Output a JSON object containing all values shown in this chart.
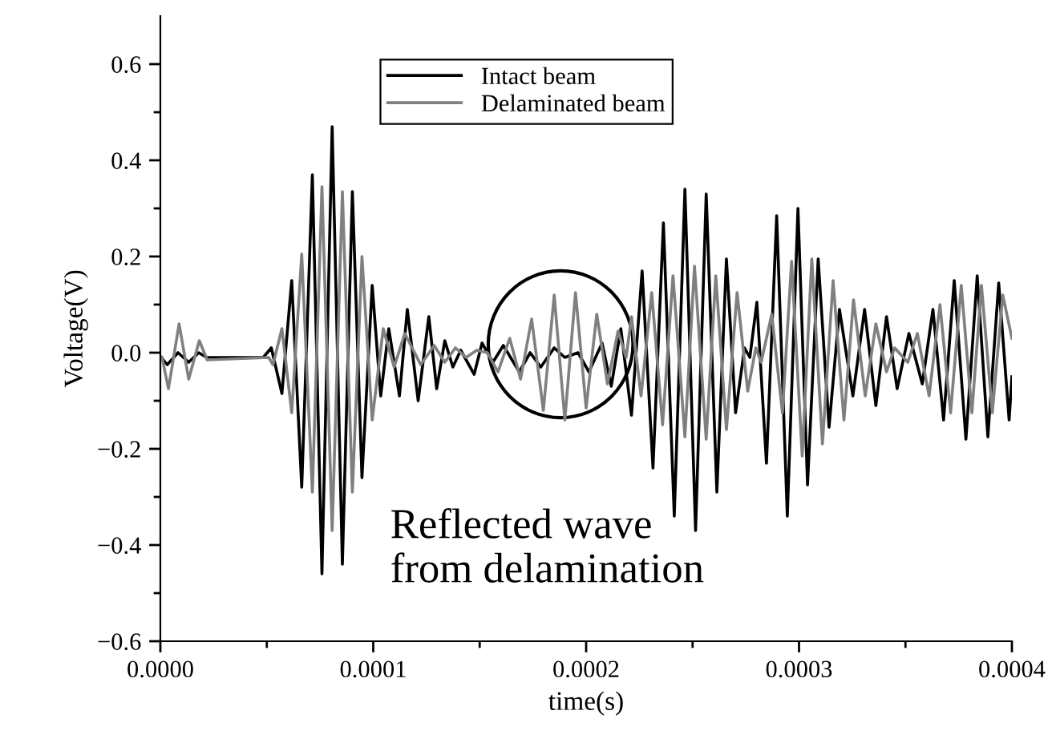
{
  "chart_data": {
    "type": "line",
    "xlabel": "time(s)",
    "ylabel": "Voltage(V)",
    "xlim": [
      0,
      0.0004
    ],
    "ylim": [
      -0.6,
      0.7
    ],
    "xticks": [
      {
        "value": 0,
        "label": "0.0000"
      },
      {
        "value": 5e-05,
        "label": null
      },
      {
        "value": 0.0001,
        "label": "0.0001"
      },
      {
        "value": 0.00015,
        "label": null
      },
      {
        "value": 0.0002,
        "label": "0.0002"
      },
      {
        "value": 0.00025,
        "label": null
      },
      {
        "value": 0.0003,
        "label": "0.0003"
      },
      {
        "value": 0.00035,
        "label": null
      },
      {
        "value": 0.0004,
        "label": "0.0004"
      }
    ],
    "yticks": [
      {
        "value": -0.6,
        "label": "−0.6"
      },
      {
        "value": -0.5,
        "label": null
      },
      {
        "value": -0.4,
        "label": "−0.4"
      },
      {
        "value": -0.3,
        "label": null
      },
      {
        "value": -0.2,
        "label": "−0.2"
      },
      {
        "value": -0.1,
        "label": null
      },
      {
        "value": 0,
        "label": "0.0"
      },
      {
        "value": 0.1,
        "label": null
      },
      {
        "value": 0.2,
        "label": "0.2"
      },
      {
        "value": 0.3,
        "label": null
      },
      {
        "value": 0.4,
        "label": "0.4"
      },
      {
        "value": 0.5,
        "label": null
      },
      {
        "value": 0.6,
        "label": "0.6"
      }
    ],
    "grid": false,
    "legend": "top",
    "marker": "none",
    "line_style": "solid",
    "annotations": [
      "Reflected wave\nfrom delamination"
    ],
    "series": [
      {
        "name": "Intact beam",
        "color": "#000000",
        "x": [
          5e-07,
          3.2e-06,
          8.3e-06,
          1.33e-05,
          1.8e-05,
          2.18e-05,
          4.83e-05,
          5.21e-05,
          5.71e-05,
          6.17e-05,
          6.64e-05,
          7.14e-05,
          7.59e-05,
          8.07e-05,
          8.55e-05,
          9.02e-05,
          9.47e-05,
          9.95e-05,
          0.0001035,
          0.0001073,
          0.0001123,
          0.000116,
          0.0001211,
          0.0001261,
          0.0001298,
          0.0001336,
          0.0001374,
          0.0001411,
          0.0001474,
          0.0001511,
          0.0001562,
          0.0001611,
          0.0001686,
          0.0001737,
          0.0001787,
          0.000185,
          0.00019,
          0.0001962,
          0.0002013,
          0.0002075,
          0.0002118,
          0.0002163,
          0.0002213,
          0.0002263,
          0.0002314,
          0.0002363,
          0.0002414,
          0.0002464,
          0.0002514,
          0.0002564,
          0.0002614,
          0.0002659,
          0.0002702,
          0.0002744,
          0.0002769,
          0.0002802,
          0.0002847,
          0.0002895,
          0.0002945,
          0.0002995,
          0.000304,
          0.000309,
          0.0003141,
          0.000319,
          0.0003253,
          0.0003308,
          0.0003361,
          0.0003411,
          0.0003461,
          0.0003516,
          0.0003579,
          0.0003629,
          0.0003679,
          0.0003729,
          0.0003784,
          0.0003837,
          0.0003887,
          0.0003938,
          0.0003987,
          0.0004
        ],
        "values": [
          -0.01,
          -0.025,
          0.0,
          -0.02,
          0.0,
          -0.01,
          -0.01,
          0.01,
          -0.085,
          0.15,
          -0.28,
          0.37,
          -0.46,
          0.47,
          -0.44,
          0.335,
          -0.26,
          0.14,
          -0.09,
          0.05,
          -0.09,
          0.09,
          -0.1,
          0.075,
          -0.075,
          0.025,
          -0.03,
          0.005,
          -0.045,
          0.02,
          -0.02,
          0.015,
          -0.04,
          0.0,
          -0.03,
          0.01,
          -0.01,
          0.0,
          -0.04,
          0.02,
          -0.07,
          0.05,
          -0.13,
          0.17,
          -0.24,
          0.27,
          -0.34,
          0.34,
          -0.37,
          0.33,
          -0.29,
          0.195,
          -0.125,
          0.01,
          -0.01,
          0.105,
          -0.23,
          0.285,
          -0.34,
          0.3,
          -0.275,
          0.195,
          -0.155,
          0.09,
          -0.09,
          0.09,
          -0.11,
          0.075,
          -0.075,
          0.04,
          -0.065,
          0.09,
          -0.14,
          0.15,
          -0.18,
          0.16,
          -0.175,
          0.145,
          -0.14,
          -0.05
        ]
      },
      {
        "name": "Delaminated beam",
        "color": "#808080",
        "x": [
          8e-07,
          3.8e-06,
          8.8e-06,
          1.33e-05,
          1.83e-05,
          2.2e-05,
          5.09e-05,
          5.29e-05,
          5.71e-05,
          6.17e-05,
          6.64e-05,
          7.14e-05,
          7.59e-05,
          8.07e-05,
          8.55e-05,
          9.02e-05,
          9.47e-05,
          9.95e-05,
          0.0001047,
          0.0001098,
          0.0001148,
          0.0001223,
          0.0001286,
          0.0001336,
          0.0001386,
          0.0001436,
          0.0001486,
          0.0001536,
          0.0001586,
          0.0001641,
          0.0001692,
          0.0001744,
          0.0001799,
          0.000185,
          0.00019,
          0.000195,
          0.0002,
          0.000205,
          0.00021,
          0.000215,
          0.0002188,
          0.0002213,
          0.0002258,
          0.0002308,
          0.0002359,
          0.0002408,
          0.0002464,
          0.0002509,
          0.0002564,
          0.0002609,
          0.0002659,
          0.0002709,
          0.0002759,
          0.0002797,
          0.0002822,
          0.0002872,
          0.0002922,
          0.0002965,
          0.0003015,
          0.000306,
          0.000311,
          0.000316,
          0.0003211,
          0.0003256,
          0.0003311,
          0.0003361,
          0.0003411,
          0.0003449,
          0.0003511,
          0.0003556,
          0.0003611,
          0.0003662,
          0.0003712,
          0.0003762,
          0.0003812,
          0.0003857,
          0.0003908,
          0.0003957,
          0.0004
        ],
        "values": [
          -0.01,
          -0.075,
          0.06,
          -0.055,
          0.025,
          -0.015,
          -0.01,
          -0.025,
          0.05,
          -0.125,
          0.205,
          -0.29,
          0.345,
          -0.37,
          0.335,
          -0.29,
          0.2,
          -0.14,
          0.05,
          -0.03,
          0.04,
          -0.025,
          0.015,
          -0.02,
          0.01,
          -0.01,
          0.005,
          0.0,
          -0.04,
          0.03,
          -0.055,
          0.07,
          -0.12,
          0.12,
          -0.14,
          0.125,
          -0.115,
          0.08,
          -0.065,
          0.045,
          -0.01,
          0.075,
          -0.09,
          0.125,
          -0.15,
          0.16,
          -0.175,
          0.18,
          -0.18,
          0.16,
          -0.16,
          0.125,
          -0.08,
          0.01,
          -0.02,
          0.08,
          -0.125,
          0.19,
          -0.215,
          0.195,
          -0.19,
          0.15,
          -0.14,
          0.11,
          -0.09,
          0.06,
          -0.04,
          0.01,
          -0.02,
          0.04,
          -0.09,
          0.1,
          -0.125,
          0.14,
          -0.125,
          0.14,
          -0.125,
          0.12,
          0.03
        ]
      }
    ]
  }
}
